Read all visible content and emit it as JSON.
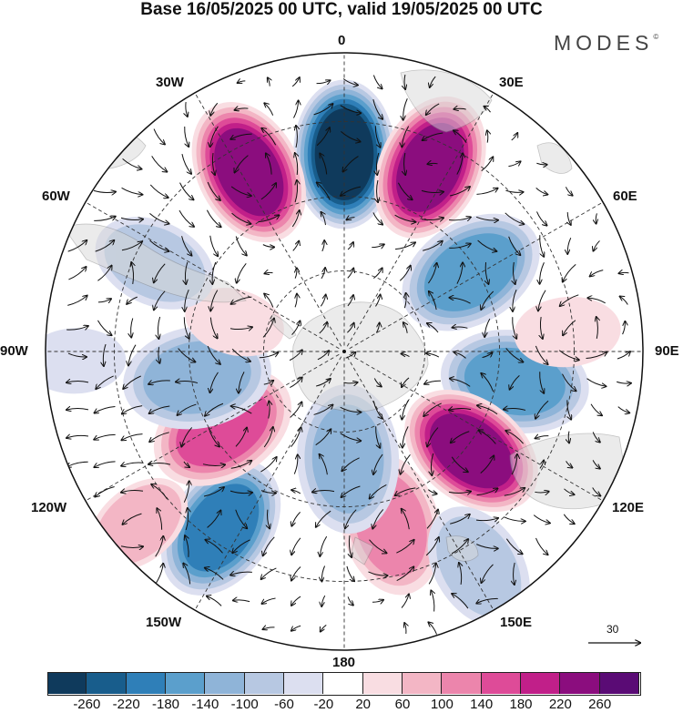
{
  "title": "Base 16/05/2025 00 UTC, valid 19/05/2025 00 UTC",
  "brand": "MODES",
  "brand_mark": "©",
  "longitude_labels": {
    "top": "0",
    "top_left": "30W",
    "top_right": "30E",
    "upper_left": "60W",
    "upper_right": "60E",
    "left": "90W",
    "right": "90E",
    "lower_left": "120W",
    "lower_right": "120E",
    "bottom_left": "150W",
    "bottom_right": "150E",
    "bottom": "180"
  },
  "reference_vector": "30",
  "colorbar": {
    "ticks": [
      "-260",
      "-220",
      "-180",
      "-140",
      "-100",
      "-60",
      "-20",
      "20",
      "60",
      "100",
      "140",
      "180",
      "220",
      "260"
    ],
    "colors": [
      "#0f3a5c",
      "#185d8c",
      "#2f7fb8",
      "#5b9fcc",
      "#8fb4d8",
      "#b7c8e2",
      "#dcdff0",
      "#ffffff",
      "#f9dde2",
      "#f3b6c5",
      "#ec85ac",
      "#de4b98",
      "#c11f89",
      "#8b0d7e",
      "#5a0b75"
    ]
  },
  "anomalies": [
    {
      "lon": 0,
      "r": 0.66,
      "v": -270
    },
    {
      "lon": 25,
      "r": 0.68,
      "v": 230
    },
    {
      "lon": -28,
      "r": 0.68,
      "v": 250
    },
    {
      "lon": 58,
      "r": 0.5,
      "v": -150
    },
    {
      "lon": 100,
      "r": 0.58,
      "v": -160
    },
    {
      "lon": 128,
      "r": 0.54,
      "v": 240
    },
    {
      "lon": 165,
      "r": 0.6,
      "v": 110
    },
    {
      "lon": 178,
      "r": 0.36,
      "v": -120
    },
    {
      "lon": -145,
      "r": 0.72,
      "v": -200
    },
    {
      "lon": -122,
      "r": 0.48,
      "v": 170
    },
    {
      "lon": -100,
      "r": 0.5,
      "v": -120
    },
    {
      "lon": -75,
      "r": 0.38,
      "v": 40
    },
    {
      "lon": -65,
      "r": 0.7,
      "v": -80
    },
    {
      "lon": 85,
      "r": 0.75,
      "v": 50
    },
    {
      "lon": -92,
      "r": 0.9,
      "v": -40
    },
    {
      "lon": 148,
      "r": 0.85,
      "v": -90
    },
    {
      "lon": -130,
      "r": 0.9,
      "v": 60
    }
  ]
}
